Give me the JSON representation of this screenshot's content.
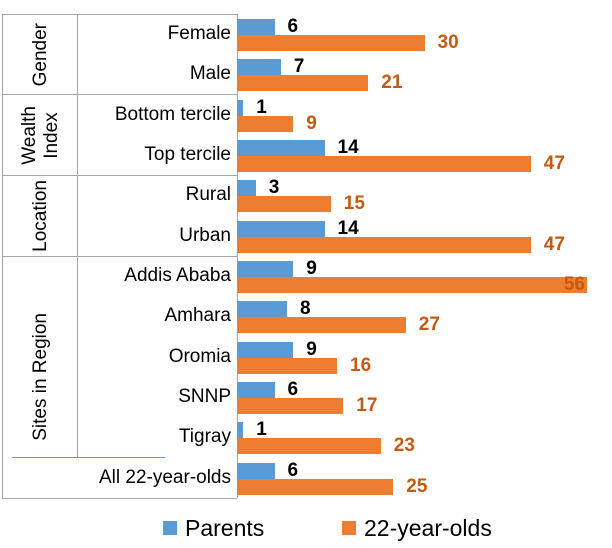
{
  "chart_data": {
    "type": "bar",
    "orientation": "horizontal",
    "title": "",
    "xlabel": "",
    "ylabel": "",
    "xlim": [
      0,
      60
    ],
    "grid": false,
    "legend_position": "bottom",
    "value_labels": true,
    "categories": [
      "Female",
      "Male",
      "Bottom tercile",
      "Top tercile",
      "Rural",
      "Urban",
      "Addis Ababa",
      "Amhara",
      "Oromia",
      "SNNP",
      "Tigray",
      "All 22-year-olds"
    ],
    "series": [
      {
        "name": "Parents",
        "color": "#5B9BD5",
        "label_color": "#000000",
        "values": [
          6,
          7,
          1,
          14,
          3,
          14,
          9,
          8,
          9,
          6,
          1,
          6
        ]
      },
      {
        "name": "22-year-olds",
        "color": "#ED7D31",
        "label_color": "#C55A11",
        "values": [
          30,
          21,
          9,
          47,
          15,
          47,
          56,
          27,
          16,
          17,
          23,
          25
        ]
      }
    ],
    "category_groups": [
      {
        "label": "Gender",
        "start": 0,
        "end": 1
      },
      {
        "label": "Wealth\nIndex",
        "start": 2,
        "end": 3
      },
      {
        "label": "Location",
        "start": 4,
        "end": 5
      },
      {
        "label": "Sites in Region",
        "start": 6,
        "end": 11
      }
    ],
    "subgroup_separator_before_category": "All 22-year-olds"
  },
  "colors": {
    "axis_gray": "#A6A6A6",
    "separator_blue": "#5B9BD5",
    "background": "#FFFFFF"
  }
}
